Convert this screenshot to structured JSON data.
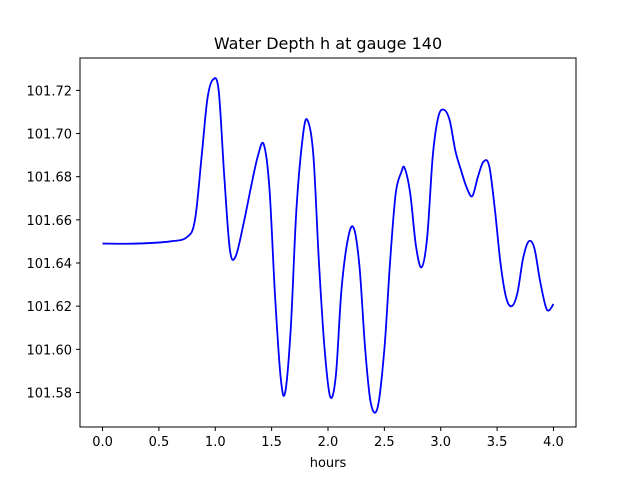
{
  "chart_data": {
    "type": "line",
    "title": "Water Depth h at gauge 140",
    "xlabel": "hours",
    "ylabel": "",
    "xlim": [
      -0.2,
      4.2
    ],
    "ylim": [
      101.564,
      101.735
    ],
    "xticks": [
      0.0,
      0.5,
      1.0,
      1.5,
      2.0,
      2.5,
      3.0,
      3.5,
      4.0
    ],
    "xtick_labels": [
      "0.0",
      "0.5",
      "1.0",
      "1.5",
      "2.0",
      "2.5",
      "3.0",
      "3.5",
      "4.0"
    ],
    "yticks": [
      101.58,
      101.6,
      101.62,
      101.64,
      101.66,
      101.68,
      101.7,
      101.72
    ],
    "ytick_labels": [
      "101.58",
      "101.60",
      "101.62",
      "101.64",
      "101.66",
      "101.68",
      "101.70",
      "101.72"
    ],
    "grid": false,
    "series": [
      {
        "color": "#0000ff",
        "x": [
          0.0,
          0.3,
          0.6,
          0.75,
          0.82,
          0.88,
          0.93,
          0.98,
          1.03,
          1.08,
          1.13,
          1.18,
          1.25,
          1.32,
          1.38,
          1.43,
          1.48,
          1.53,
          1.58,
          1.62,
          1.67,
          1.72,
          1.78,
          1.82,
          1.87,
          1.92,
          1.97,
          2.02,
          2.07,
          2.12,
          2.18,
          2.23,
          2.28,
          2.33,
          2.38,
          2.44,
          2.5,
          2.55,
          2.6,
          2.65,
          2.68,
          2.73,
          2.78,
          2.83,
          2.88,
          2.93,
          2.98,
          3.03,
          3.08,
          3.13,
          3.18,
          3.23,
          3.28,
          3.33,
          3.38,
          3.43,
          3.48,
          3.53,
          3.58,
          3.63,
          3.68,
          3.73,
          3.78,
          3.83,
          3.88,
          3.93,
          3.96,
          4.0
        ],
        "y": [
          101.649,
          101.649,
          101.65,
          101.652,
          101.66,
          101.69,
          101.716,
          101.725,
          101.72,
          101.68,
          101.646,
          101.643,
          101.658,
          101.676,
          101.69,
          101.695,
          101.675,
          101.625,
          101.587,
          101.58,
          101.61,
          101.665,
          101.7,
          101.706,
          101.69,
          101.64,
          101.6,
          101.578,
          101.588,
          101.628,
          101.652,
          101.656,
          101.638,
          101.6,
          101.575,
          101.573,
          101.6,
          101.64,
          101.672,
          101.682,
          101.684,
          101.672,
          101.648,
          101.638,
          101.652,
          101.69,
          101.708,
          101.711,
          101.706,
          101.692,
          101.683,
          101.675,
          101.671,
          101.68,
          101.687,
          101.685,
          101.665,
          101.64,
          101.624,
          101.62,
          101.626,
          101.642,
          101.65,
          101.647,
          101.632,
          101.62,
          101.618,
          101.621
        ]
      }
    ]
  }
}
